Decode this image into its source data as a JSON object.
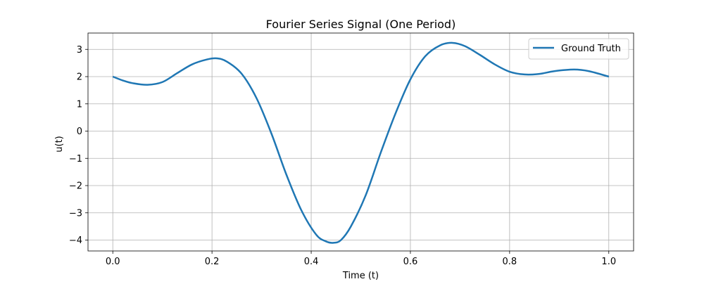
{
  "chart_data": {
    "type": "line",
    "title": "Fourier Series Signal (One Period)",
    "xlabel": "Time (t)",
    "ylabel": "u(t)",
    "xlim": [
      -0.05,
      1.05
    ],
    "ylim": [
      -4.4,
      3.6
    ],
    "xticks": [
      0.0,
      0.2,
      0.4,
      0.6,
      0.8,
      1.0
    ],
    "xtick_labels": [
      "0.0",
      "0.2",
      "0.4",
      "0.6",
      "0.8",
      "1.0"
    ],
    "yticks": [
      -4,
      -3,
      -2,
      -1,
      0,
      1,
      2,
      3
    ],
    "ytick_labels": [
      "−4",
      "−3",
      "−2",
      "−1",
      "0",
      "1",
      "2",
      "3"
    ],
    "grid": true,
    "legend_position": "top-right",
    "series": [
      {
        "name": "Ground Truth",
        "color": "#1f77b4",
        "x": [
          0.0,
          0.02,
          0.04,
          0.07,
          0.1,
          0.13,
          0.16,
          0.19,
          0.21,
          0.23,
          0.26,
          0.29,
          0.32,
          0.35,
          0.38,
          0.41,
          0.43,
          0.445,
          0.46,
          0.48,
          0.51,
          0.54,
          0.57,
          0.6,
          0.63,
          0.66,
          0.685,
          0.71,
          0.74,
          0.77,
          0.8,
          0.83,
          0.86,
          0.89,
          0.93,
          0.96,
          1.0
        ],
        "y": [
          2.0,
          1.86,
          1.76,
          1.7,
          1.8,
          2.13,
          2.45,
          2.63,
          2.67,
          2.55,
          2.1,
          1.2,
          -0.1,
          -1.6,
          -2.9,
          -3.8,
          -4.05,
          -4.1,
          -4.0,
          -3.5,
          -2.35,
          -0.8,
          0.65,
          1.9,
          2.75,
          3.15,
          3.24,
          3.12,
          2.8,
          2.45,
          2.18,
          2.08,
          2.1,
          2.2,
          2.26,
          2.2,
          2.0
        ]
      }
    ]
  }
}
